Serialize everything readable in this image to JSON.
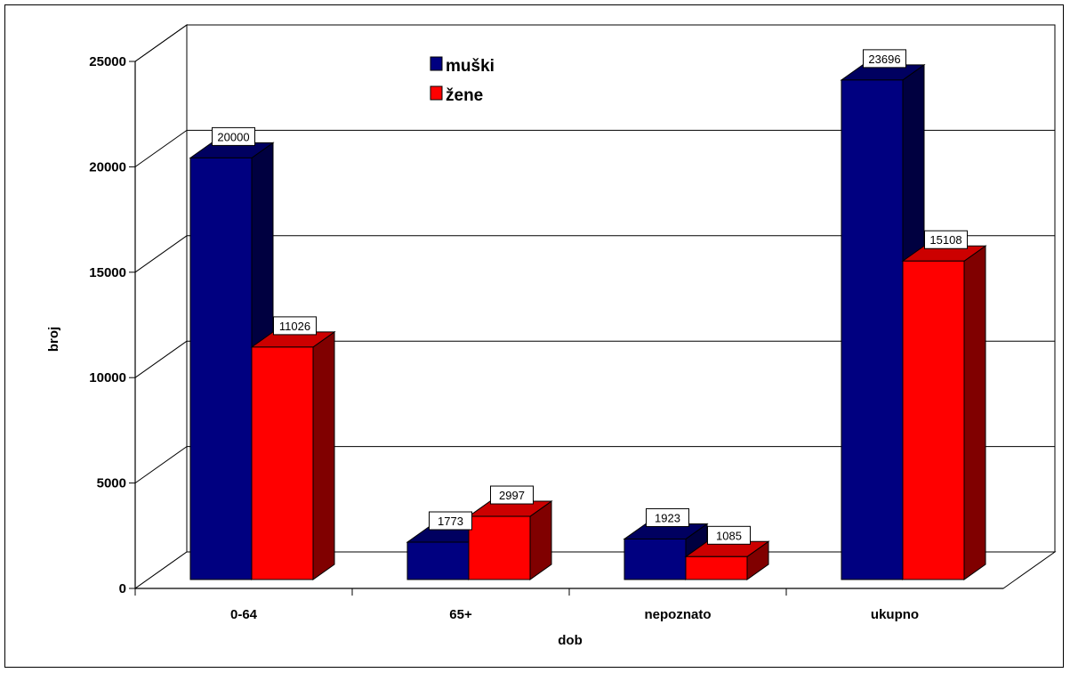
{
  "chart_data": {
    "type": "bar",
    "categories": [
      "0-64",
      "65+",
      "nepoznato",
      "ukupno"
    ],
    "series": [
      {
        "name": "muški",
        "values": [
          20000,
          1773,
          1923,
          23696
        ],
        "color": "#000080"
      },
      {
        "name": "žene",
        "values": [
          11026,
          2997,
          1085,
          15108
        ],
        "color": "#ff0000"
      }
    ],
    "title": "",
    "xlabel": "dob",
    "ylabel": "broj",
    "ylim": [
      0,
      25000
    ],
    "yticks": [
      "0",
      "5000",
      "10000",
      "15000",
      "20000",
      "25000"
    ],
    "grid": true,
    "legend_position": "top-center",
    "three_d": true
  }
}
